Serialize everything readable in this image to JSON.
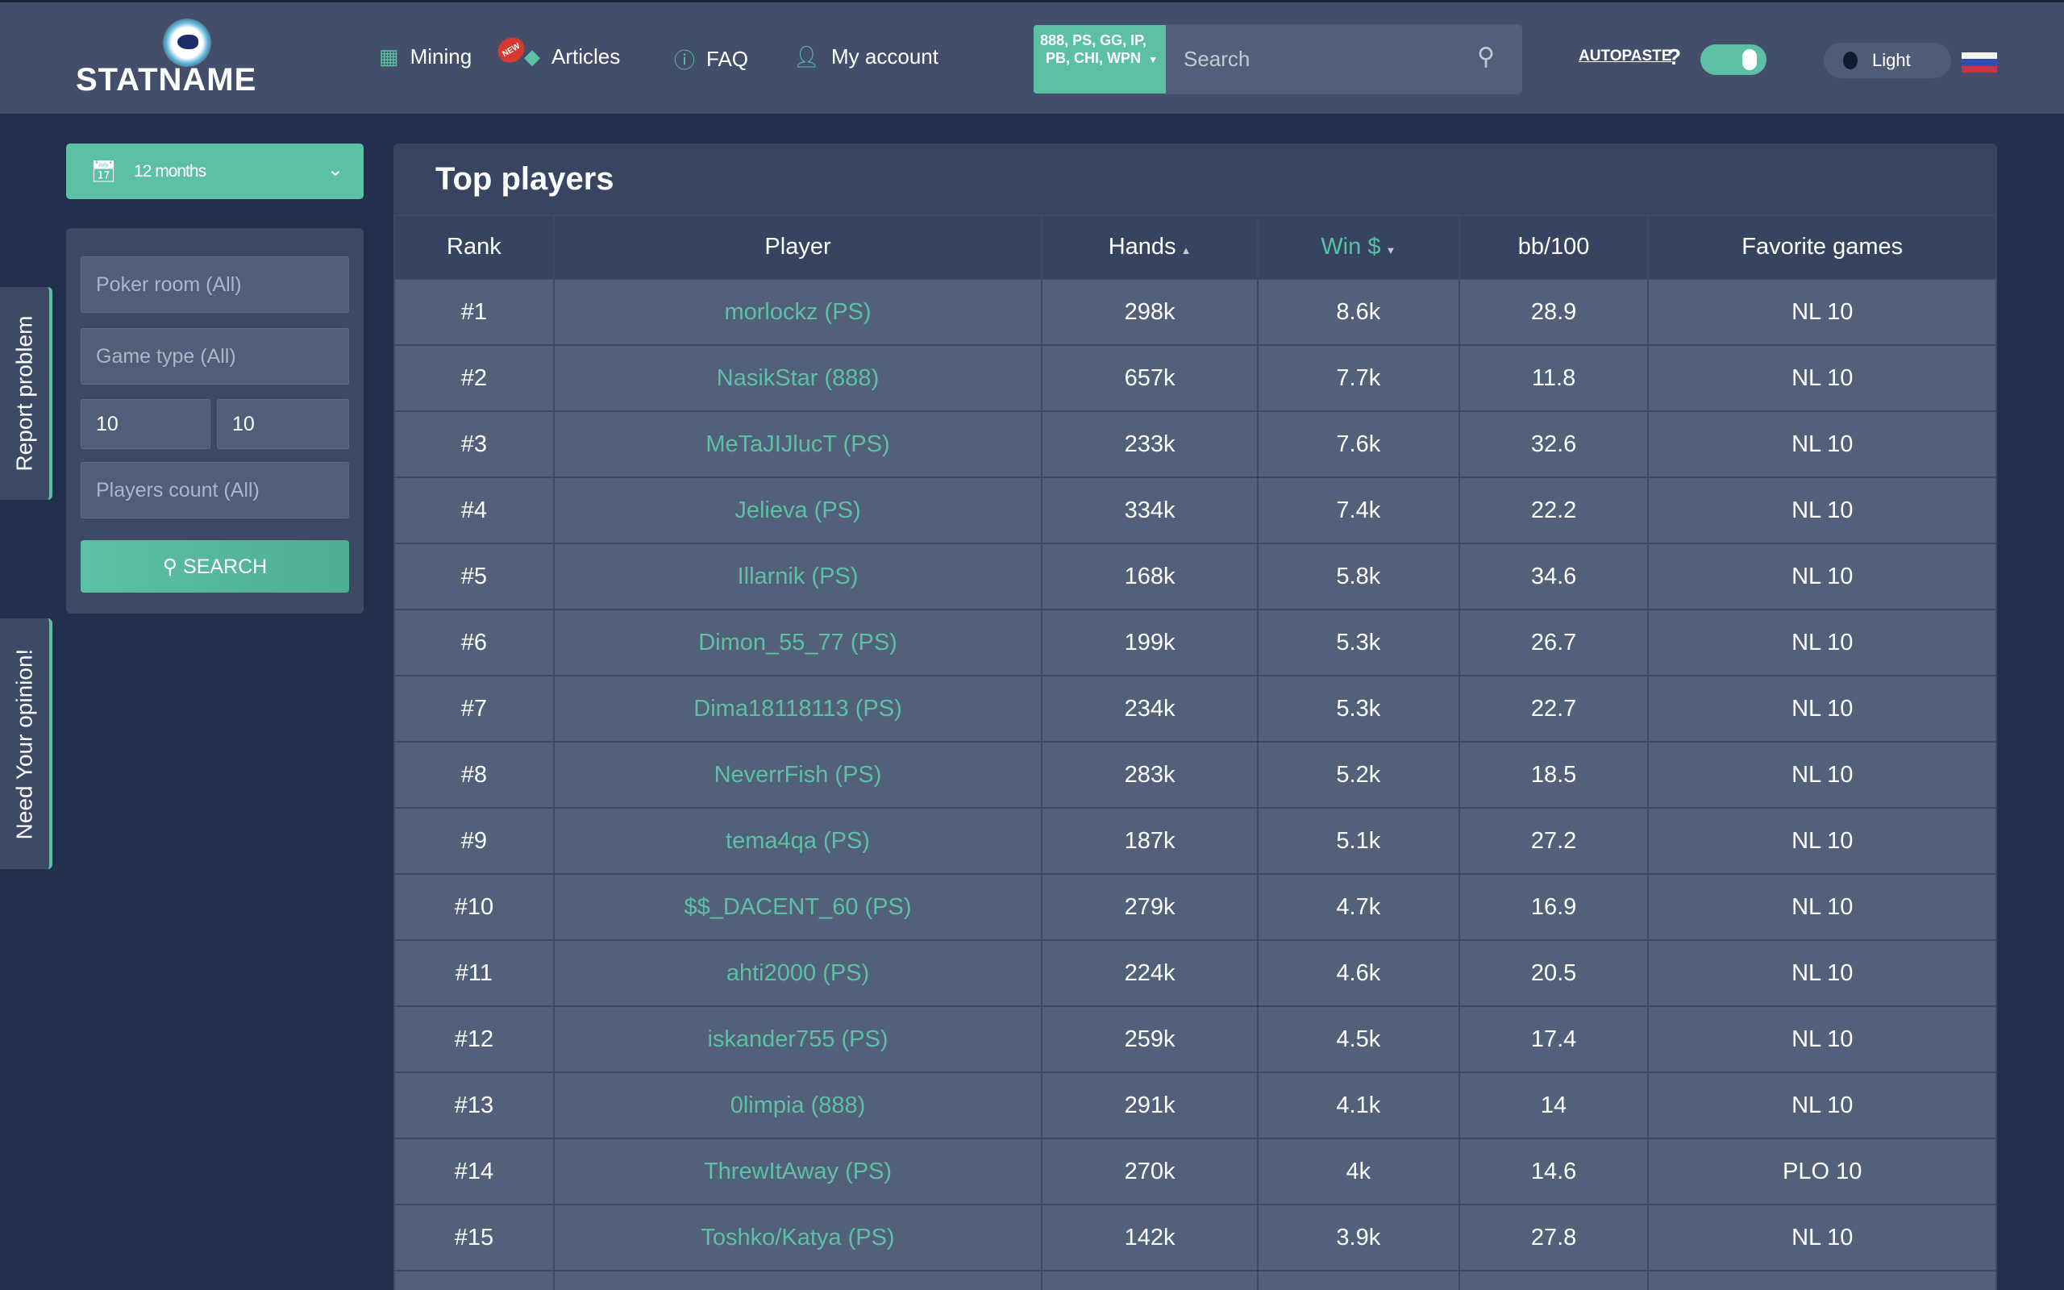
{
  "header": {
    "logo_text": "STATNAME",
    "nav": [
      {
        "label": "Mining",
        "icon": "calculator-icon",
        "badge": "NEW"
      },
      {
        "label": "Articles",
        "icon": "diamond-icon"
      },
      {
        "label": "FAQ",
        "icon": "question-circle-icon"
      },
      {
        "label": "My account",
        "icon": "user-icon"
      }
    ],
    "network_selector": "888, PS, GG, IP, PB, CHI, WPN",
    "search_placeholder": "Search",
    "autopaste_label": "AUTOPASTE",
    "autopaste_help": "?",
    "autopaste_on": true,
    "theme_label": "Light",
    "language_flag": "ru"
  },
  "sidebar": {
    "period": "12 months",
    "filters": {
      "poker_room_placeholder": "Poker room (All)",
      "game_type_placeholder": "Game type (All)",
      "limit_from": "10",
      "limit_to": "10",
      "players_count_placeholder": "Players count (All)",
      "search_label": "SEARCH"
    },
    "report_problem": "Report problem",
    "need_opinion": "Need Your opinion!"
  },
  "main": {
    "title": "Top players",
    "columns": [
      "Rank",
      "Player",
      "Hands",
      "Win $",
      "bb/100",
      "Favorite games"
    ],
    "rows": [
      [
        "#1",
        "morlockz (PS)",
        "298k",
        "8.6k",
        "28.9",
        "NL 10"
      ],
      [
        "#2",
        "NasikStar (888)",
        "657k",
        "7.7k",
        "11.8",
        "NL 10"
      ],
      [
        "#3",
        "MeTaJIJlucT (PS)",
        "233k",
        "7.6k",
        "32.6",
        "NL 10"
      ],
      [
        "#4",
        "Jelieva (PS)",
        "334k",
        "7.4k",
        "22.2",
        "NL 10"
      ],
      [
        "#5",
        "Illarnik (PS)",
        "168k",
        "5.8k",
        "34.6",
        "NL 10"
      ],
      [
        "#6",
        "Dimon_55_77 (PS)",
        "199k",
        "5.3k",
        "26.7",
        "NL 10"
      ],
      [
        "#7",
        "Dima18118113 (PS)",
        "234k",
        "5.3k",
        "22.7",
        "NL 10"
      ],
      [
        "#8",
        "NeverrFish (PS)",
        "283k",
        "5.2k",
        "18.5",
        "NL 10"
      ],
      [
        "#9",
        "tema4qa (PS)",
        "187k",
        "5.1k",
        "27.2",
        "NL 10"
      ],
      [
        "#10",
        "$$_DACENT_60 (PS)",
        "279k",
        "4.7k",
        "16.9",
        "NL 10"
      ],
      [
        "#11",
        "ahti2000 (PS)",
        "224k",
        "4.6k",
        "20.5",
        "NL 10"
      ],
      [
        "#12",
        "iskander755 (PS)",
        "259k",
        "4.5k",
        "17.4",
        "NL 10"
      ],
      [
        "#13",
        "0limpia (888)",
        "291k",
        "4.1k",
        "14",
        "NL 10"
      ],
      [
        "#14",
        "ThrewItAway (PS)",
        "270k",
        "4k",
        "14.6",
        "PLO 10"
      ],
      [
        "#15",
        "Toshko/Katya (PS)",
        "142k",
        "3.9k",
        "27.8",
        "NL 10"
      ]
    ]
  },
  "colors": {
    "accent": "#5cc0a4",
    "header_bg": "#434f6a",
    "page_bg": "#22304d",
    "row_bg": "#52607a"
  }
}
